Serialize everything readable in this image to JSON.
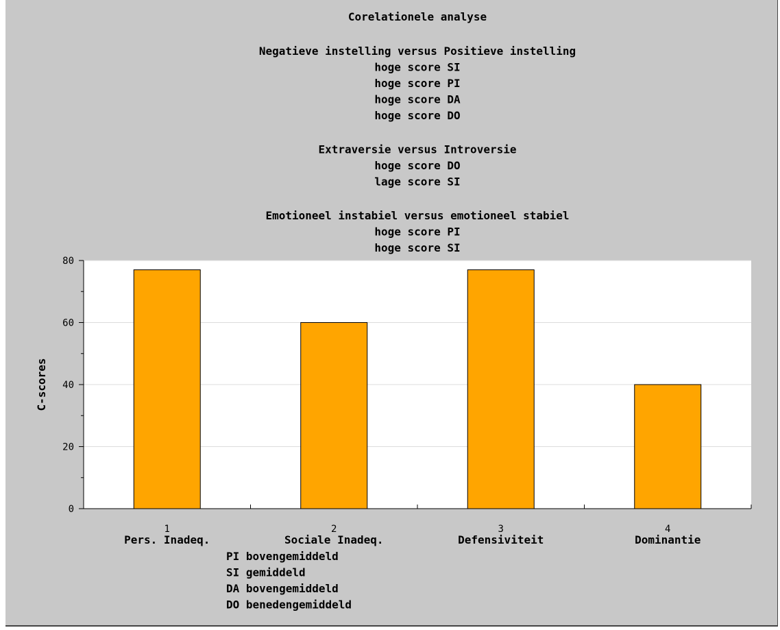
{
  "chart_data": {
    "type": "bar",
    "title": "Corelationele analyse",
    "subtitle_groups": [
      {
        "heading": "Negatieve instelling versus Positieve instelling",
        "lines": [
          "hoge score SI",
          "hoge score PI",
          "hoge score DA",
          "hoge score DO"
        ]
      },
      {
        "heading": "Extraversie versus Introversie",
        "lines": [
          "hoge score DO",
          "lage score SI"
        ]
      },
      {
        "heading": "Emotioneel instabiel versus emotioneel stabiel",
        "lines": [
          "hoge score PI",
          "hoge score SI"
        ]
      }
    ],
    "ylabel": "C-scores",
    "ylim": [
      0,
      80
    ],
    "yticks": [
      0,
      20,
      40,
      60,
      80
    ],
    "x_ticks": [
      "1",
      "2",
      "3",
      "4"
    ],
    "categories": [
      "Pers. Inadeq.",
      "Sociale Inadeq.",
      "Defensiviteit",
      "Dominantie"
    ],
    "values": [
      77,
      60,
      77,
      40
    ],
    "bar_color": "#ffa500",
    "plot_background": "#ffffff",
    "frame_background": "#c8c8c8",
    "grid": true,
    "footnotes": [
      "PI bovengemiddeld",
      "SI gemiddeld",
      "DA bovengemiddeld",
      "DO benedengemiddeld"
    ]
  }
}
